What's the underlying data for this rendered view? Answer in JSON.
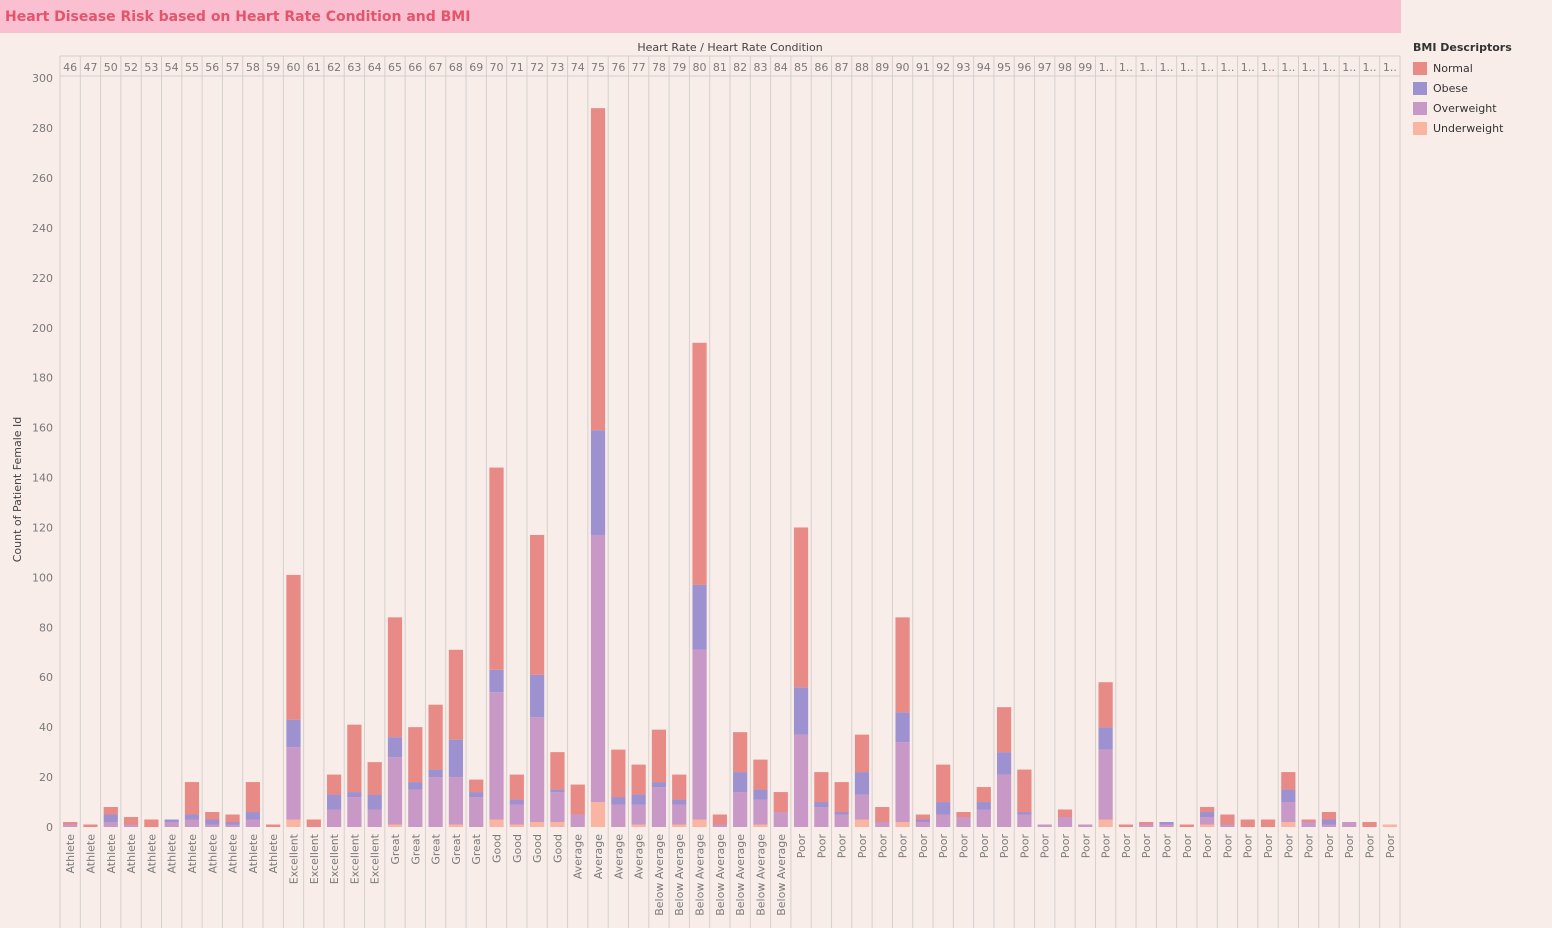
{
  "title": "Heart Disease Risk based on Heart Rate Condition and BMI",
  "legend": {
    "title": "BMI Descriptors",
    "items": [
      {
        "label": "Normal",
        "color": "#e88a86"
      },
      {
        "label": "Obese",
        "color": "#9d92cf"
      },
      {
        "label": "Overweight",
        "color": "#c898c6"
      },
      {
        "label": "Underweight",
        "color": "#f9b4a2"
      }
    ]
  },
  "chart_data": {
    "type": "bar",
    "stacked": true,
    "title": "Heart Disease Risk based on Heart Rate Condition and BMI",
    "column_header": "Heart Rate  /  Heart Rate Condition",
    "ylabel": "Count of Patient Female Id",
    "ylim": [
      0,
      300
    ],
    "yticks": [
      0,
      20,
      40,
      60,
      80,
      100,
      120,
      140,
      160,
      180,
      200,
      220,
      240,
      260,
      280,
      300
    ],
    "grid": false,
    "legend_position": "right",
    "heart_rates": [
      "46",
      "47",
      "50",
      "52",
      "53",
      "54",
      "55",
      "56",
      "57",
      "58",
      "59",
      "60",
      "61",
      "62",
      "63",
      "64",
      "65",
      "66",
      "67",
      "68",
      "69",
      "70",
      "71",
      "72",
      "73",
      "74",
      "75",
      "76",
      "77",
      "78",
      "79",
      "80",
      "81",
      "82",
      "83",
      "84",
      "85",
      "86",
      "87",
      "88",
      "89",
      "90",
      "91",
      "92",
      "93",
      "94",
      "95",
      "96",
      "97",
      "98",
      "99",
      "1..",
      "1..",
      "1..",
      "1..",
      "1..",
      "1..",
      "1..",
      "1..",
      "1..",
      "1..",
      "1..",
      "1..",
      "1..",
      "1..",
      "1.."
    ],
    "conditions": [
      "Athlete",
      "Athlete",
      "Athlete",
      "Athlete",
      "Athlete",
      "Athlete",
      "Athlete",
      "Athlete",
      "Athlete",
      "Athlete",
      "Athlete",
      "Excellent",
      "Excellent",
      "Excellent",
      "Excellent",
      "Excellent",
      "Great",
      "Great",
      "Great",
      "Great",
      "Great",
      "Good",
      "Good",
      "Good",
      "Good",
      "Average",
      "Average",
      "Average",
      "Average",
      "Below Average",
      "Below Average",
      "Below Average",
      "Below Average",
      "Below Average",
      "Below Average",
      "Below Average",
      "Poor",
      "Poor",
      "Poor",
      "Poor",
      "Poor",
      "Poor",
      "Poor",
      "Poor",
      "Poor",
      "Poor",
      "Poor",
      "Poor",
      "Poor",
      "Poor",
      "Poor",
      "Poor",
      "Poor",
      "Poor",
      "Poor",
      "Poor",
      "Poor",
      "Poor",
      "Poor",
      "Poor",
      "Poor",
      "Poor",
      "Poor",
      "Poor",
      "Poor",
      "Poor"
    ],
    "series": [
      {
        "name": "Underweight",
        "values": [
          0,
          0,
          0,
          0,
          0,
          0,
          0,
          0,
          0,
          0,
          0,
          3,
          0,
          0,
          0,
          0,
          1,
          0,
          0,
          1,
          0,
          3,
          1,
          2,
          2,
          0,
          10,
          0,
          1,
          0,
          1,
          3,
          0,
          0,
          1,
          0,
          0,
          0,
          0,
          3,
          0,
          2,
          0,
          0,
          0,
          0,
          0,
          0,
          0,
          0,
          0,
          3,
          0,
          0,
          0,
          0,
          1,
          0,
          0,
          0,
          2,
          0,
          0,
          0,
          0,
          1
        ]
      },
      {
        "name": "Overweight",
        "values": [
          1,
          0,
          2,
          1,
          0,
          2,
          3,
          1,
          1,
          3,
          0,
          29,
          0,
          7,
          12,
          7,
          27,
          15,
          20,
          19,
          12,
          51,
          8,
          42,
          12,
          5,
          107,
          9,
          8,
          16,
          8,
          68,
          1,
          14,
          10,
          6,
          37,
          8,
          5,
          10,
          2,
          32,
          2,
          5,
          4,
          7,
          21,
          5,
          1,
          4,
          1,
          28,
          0,
          1,
          1,
          0,
          3,
          1,
          0,
          0,
          8,
          2,
          1,
          2,
          0,
          0
        ]
      },
      {
        "name": "Obese",
        "values": [
          0,
          0,
          3,
          0,
          0,
          1,
          2,
          2,
          1,
          3,
          0,
          11,
          0,
          6,
          2,
          6,
          8,
          3,
          3,
          15,
          2,
          9,
          2,
          17,
          1,
          0,
          42,
          3,
          4,
          2,
          2,
          26,
          0,
          8,
          4,
          0,
          19,
          2,
          1,
          9,
          0,
          12,
          1,
          5,
          0,
          3,
          9,
          1,
          0,
          0,
          0,
          9,
          0,
          0,
          1,
          0,
          2,
          0,
          0,
          0,
          5,
          0,
          2,
          0,
          0,
          0
        ]
      },
      {
        "name": "Normal",
        "values": [
          1,
          1,
          3,
          3,
          3,
          0,
          13,
          3,
          3,
          12,
          1,
          58,
          3,
          8,
          27,
          13,
          48,
          22,
          26,
          36,
          5,
          81,
          10,
          56,
          15,
          12,
          129,
          19,
          12,
          21,
          10,
          97,
          4,
          16,
          12,
          8,
          64,
          12,
          12,
          15,
          6,
          38,
          2,
          15,
          2,
          6,
          18,
          17,
          0,
          3,
          0,
          18,
          1,
          1,
          0,
          1,
          2,
          4,
          3,
          3,
          7,
          1,
          3,
          0,
          2,
          0
        ]
      }
    ]
  }
}
